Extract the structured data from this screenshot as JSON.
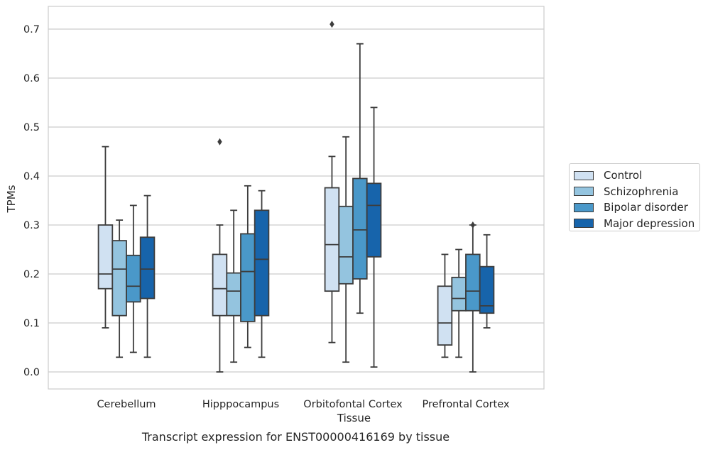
{
  "chart_data": {
    "type": "box",
    "title": "",
    "caption": "Transcript expression for ENST00000416169 by tissue",
    "xlabel": "Tissue",
    "ylabel": "TPMs",
    "ylim": [
      -0.035,
      0.745
    ],
    "yticks": [
      "0.0",
      "0.1",
      "0.2",
      "0.3",
      "0.4",
      "0.5",
      "0.6",
      "0.7"
    ],
    "grid": true,
    "legend_position": "right",
    "categories": [
      "Cerebellum",
      "Hipppocampus",
      "Orbitofontal Cortex",
      "Prefrontal Cortex"
    ],
    "series": [
      {
        "name": "Control",
        "color": "#d0e1f2",
        "boxes": [
          {
            "min": 0.09,
            "q1": 0.17,
            "median": 0.2,
            "q3": 0.3,
            "max": 0.46,
            "outliers": []
          },
          {
            "min": 0.0,
            "q1": 0.115,
            "median": 0.17,
            "q3": 0.24,
            "max": 0.3,
            "outliers": [
              0.47
            ]
          },
          {
            "min": 0.06,
            "q1": 0.165,
            "median": 0.26,
            "q3": 0.376,
            "max": 0.44,
            "outliers": [
              0.71
            ]
          },
          {
            "min": 0.03,
            "q1": 0.055,
            "median": 0.1,
            "q3": 0.175,
            "max": 0.24,
            "outliers": []
          }
        ]
      },
      {
        "name": "Schizophrenia",
        "color": "#94c4df",
        "boxes": [
          {
            "min": 0.03,
            "q1": 0.115,
            "median": 0.21,
            "q3": 0.268,
            "max": 0.31,
            "outliers": []
          },
          {
            "min": 0.02,
            "q1": 0.115,
            "median": 0.165,
            "q3": 0.202,
            "max": 0.33,
            "outliers": []
          },
          {
            "min": 0.02,
            "q1": 0.18,
            "median": 0.235,
            "q3": 0.338,
            "max": 0.48,
            "outliers": []
          },
          {
            "min": 0.03,
            "q1": 0.125,
            "median": 0.15,
            "q3": 0.193,
            "max": 0.25,
            "outliers": []
          }
        ]
      },
      {
        "name": "Bipolar disorder",
        "color": "#4a98c9",
        "boxes": [
          {
            "min": 0.04,
            "q1": 0.143,
            "median": 0.175,
            "q3": 0.238,
            "max": 0.34,
            "outliers": []
          },
          {
            "min": 0.05,
            "q1": 0.103,
            "median": 0.205,
            "q3": 0.282,
            "max": 0.38,
            "outliers": []
          },
          {
            "min": 0.12,
            "q1": 0.19,
            "median": 0.29,
            "q3": 0.395,
            "max": 0.67,
            "outliers": []
          },
          {
            "min": 0.0,
            "q1": 0.125,
            "median": 0.165,
            "q3": 0.24,
            "max": 0.3,
            "outliers": [
              0.3
            ]
          }
        ]
      },
      {
        "name": "Major depression",
        "color": "#1764ab",
        "boxes": [
          {
            "min": 0.03,
            "q1": 0.15,
            "median": 0.21,
            "q3": 0.275,
            "max": 0.36,
            "outliers": []
          },
          {
            "min": 0.03,
            "q1": 0.115,
            "median": 0.23,
            "q3": 0.33,
            "max": 0.37,
            "outliers": []
          },
          {
            "min": 0.01,
            "q1": 0.235,
            "median": 0.34,
            "q3": 0.385,
            "max": 0.54,
            "outliers": []
          },
          {
            "min": 0.09,
            "q1": 0.12,
            "median": 0.135,
            "q3": 0.215,
            "max": 0.28,
            "outliers": []
          }
        ]
      }
    ]
  }
}
